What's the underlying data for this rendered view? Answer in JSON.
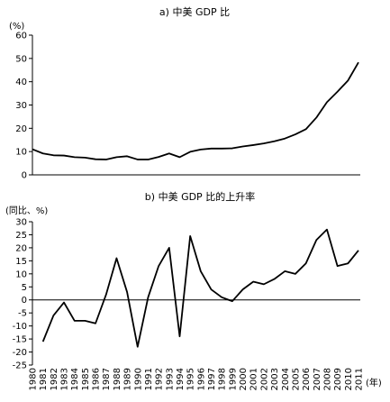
{
  "chart_data": [
    {
      "type": "line",
      "title": "a) 中美 GDP 比",
      "ylabel": "(%)",
      "xlabel": "",
      "ylim": [
        0,
        60
      ],
      "yticks": [
        0,
        10,
        20,
        30,
        40,
        50,
        60
      ],
      "x": [
        1980,
        1981,
        1982,
        1983,
        1984,
        1985,
        1986,
        1987,
        1988,
        1989,
        1990,
        1991,
        1992,
        1993,
        1994,
        1995,
        1996,
        1997,
        1998,
        1999,
        2000,
        2001,
        2002,
        2003,
        2004,
        2005,
        2006,
        2007,
        2008,
        2009,
        2010,
        2011
      ],
      "series": [
        {
          "values": [
            11,
            9.2,
            8.4,
            8.3,
            7.6,
            7.4,
            6.7,
            6.6,
            7.6,
            8,
            6.6,
            6.6,
            7.7,
            9.2,
            7.6,
            9.9,
            10.9,
            11.3,
            11.3,
            11.4,
            12.2,
            12.8,
            13.5,
            14.4,
            15.6,
            17.4,
            19.6,
            24.6,
            31.2,
            35.7,
            40.5,
            48.3
          ]
        }
      ],
      "grid": false
    },
    {
      "type": "line",
      "title": "b) 中美 GDP 比的上升率",
      "ylabel": "(同比、%)",
      "xlabel": "(年)",
      "ylim": [
        -25,
        30
      ],
      "yticks": [
        30,
        25,
        20,
        15,
        10,
        5,
        0,
        -5,
        -10,
        -15,
        -20,
        -25
      ],
      "x": [
        1981,
        1982,
        1983,
        1984,
        1985,
        1986,
        1987,
        1988,
        1989,
        1990,
        1991,
        1992,
        1993,
        1994,
        1995,
        1996,
        1997,
        1998,
        1999,
        2000,
        2001,
        2002,
        2003,
        2004,
        2005,
        2006,
        2007,
        2008,
        2009,
        2010,
        2011
      ],
      "series": [
        {
          "values": [
            -16,
            -6,
            -1,
            -8,
            -8,
            -9,
            2,
            16,
            3,
            -18,
            1,
            13,
            20,
            -14,
            24.5,
            11,
            4,
            1,
            -0.5,
            4,
            7,
            6,
            8,
            11,
            10,
            14,
            23,
            27,
            13,
            14,
            19
          ]
        }
      ],
      "zero_line": true,
      "grid": false
    }
  ],
  "x_tick_labels": [
    "1980",
    "1981",
    "1982",
    "1983",
    "1984",
    "1985",
    "1986",
    "1987",
    "1988",
    "1989",
    "1990",
    "1991",
    "1992",
    "1993",
    "1994",
    "1995",
    "1996",
    "1997",
    "1998",
    "1999",
    "2000",
    "2001",
    "2002",
    "2003",
    "2004",
    "2005",
    "2006",
    "2007",
    "2008",
    "2009",
    "2010",
    "2011"
  ]
}
